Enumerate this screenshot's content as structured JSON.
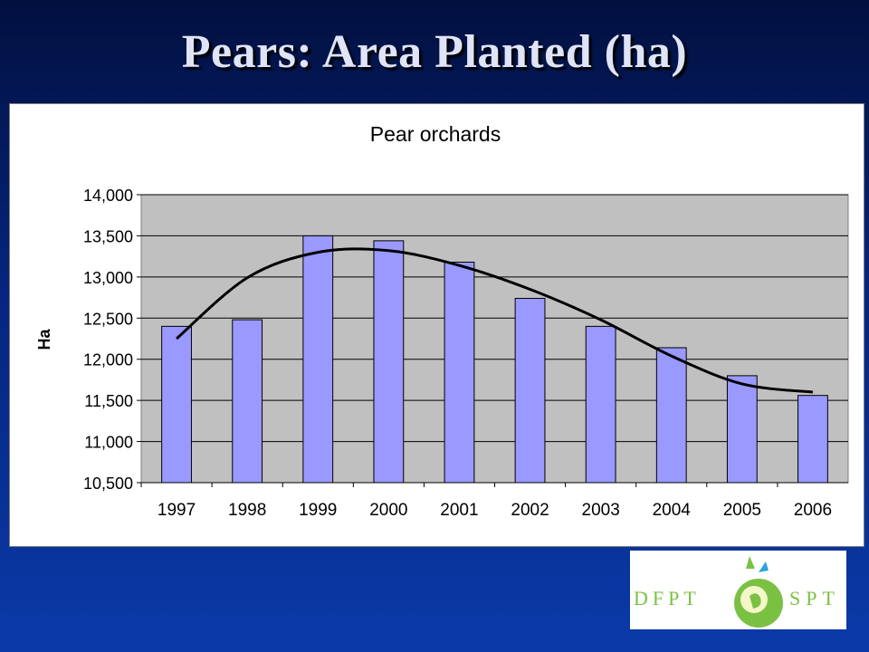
{
  "slide": {
    "title": "Pears: Area Planted (ha)"
  },
  "logo": {
    "left_text": "DFPT",
    "right_text": "SPT"
  },
  "colors": {
    "bar_fill": "#9999ff",
    "plot_bg": "#c0c0c0",
    "trend": "#000000",
    "logo_green": "#7ac143",
    "logo_blue": "#29a3dd"
  },
  "chart_data": {
    "type": "bar",
    "title": "Pear orchards",
    "xlabel": "",
    "ylabel": "Ha",
    "categories": [
      "1997",
      "1998",
      "1999",
      "2000",
      "2001",
      "2002",
      "2003",
      "2004",
      "2005",
      "2006"
    ],
    "values": [
      12400,
      12480,
      13500,
      13440,
      13180,
      12740,
      12400,
      12140,
      11800,
      11560
    ],
    "ylim": [
      10500,
      14000
    ],
    "yticks": [
      10500,
      11000,
      11500,
      12000,
      12500,
      13000,
      13500,
      14000
    ],
    "ytick_labels": [
      "10,500",
      "11,000",
      "11,500",
      "12,000",
      "12,500",
      "13,000",
      "13,500",
      "14,000"
    ],
    "trendline": {
      "type": "polynomial",
      "values": [
        12250,
        12990,
        13300,
        13320,
        13140,
        12850,
        12480,
        12040,
        11700,
        11600
      ]
    },
    "grid": true,
    "legend": "none"
  }
}
